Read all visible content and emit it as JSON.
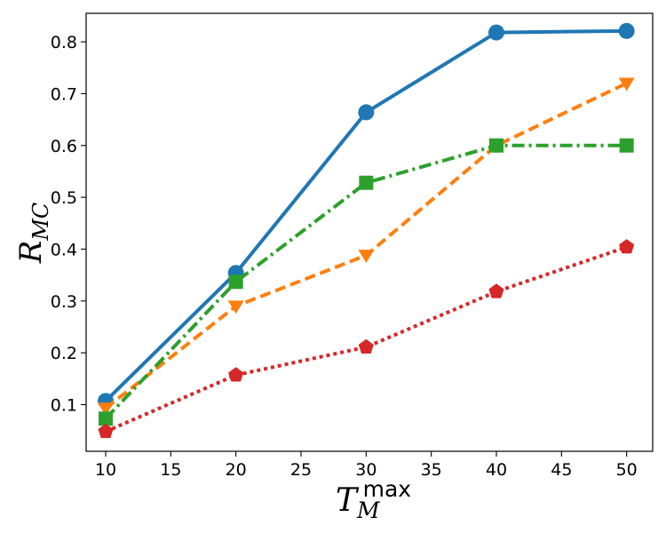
{
  "chart_data": {
    "type": "line",
    "xlabel": {
      "base": "T",
      "sub": "M",
      "sup": "max"
    },
    "ylabel": {
      "base": "R",
      "sub": "MC"
    },
    "x": [
      10,
      20,
      30,
      40,
      50
    ],
    "xlim": [
      8.5,
      52
    ],
    "ylim": [
      0.01,
      0.855
    ],
    "xticks": [
      10,
      15,
      20,
      25,
      30,
      35,
      40,
      45,
      50
    ],
    "yticks": [
      0.1,
      0.2,
      0.3,
      0.4,
      0.5,
      0.6,
      0.7,
      0.8
    ],
    "grid": false,
    "series": [
      {
        "values": [
          0.107,
          0.354,
          0.664,
          0.818,
          0.821
        ],
        "color": "#1f77b4",
        "linestyle": "solid",
        "marker": "circle"
      },
      {
        "values": [
          0.093,
          0.29,
          0.388,
          0.6,
          0.72
        ],
        "color": "#ff7f0e",
        "linestyle": "dashed",
        "marker": "triangle-down"
      },
      {
        "values": [
          0.073,
          0.337,
          0.528,
          0.6,
          0.6
        ],
        "color": "#2ca02c",
        "linestyle": "dashdot",
        "marker": "square"
      },
      {
        "values": [
          0.048,
          0.157,
          0.211,
          0.318,
          0.404
        ],
        "color": "#d62728",
        "linestyle": "dotted",
        "marker": "pentagon"
      }
    ]
  }
}
